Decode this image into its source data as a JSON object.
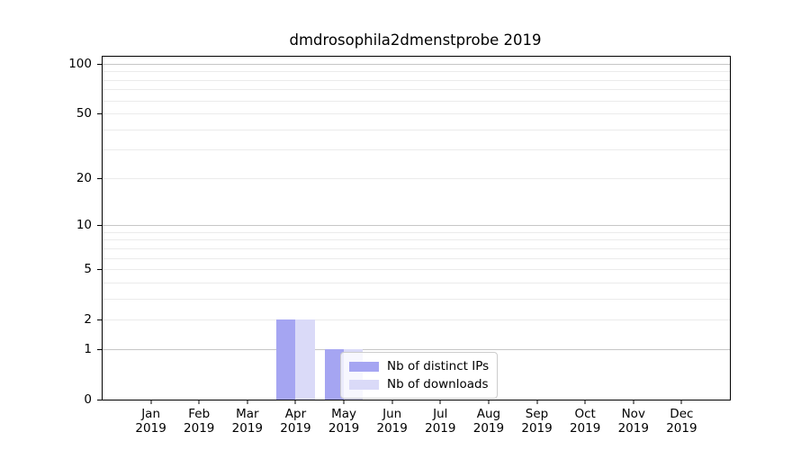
{
  "title": "dmdrosophila2dmenstprobe 2019",
  "chart_data": {
    "type": "bar",
    "title": "dmdrosophila2dmenstprobe 2019",
    "categories": [
      "Jan",
      "Feb",
      "Mar",
      "Apr",
      "May",
      "Jun",
      "Jul",
      "Aug",
      "Sep",
      "Oct",
      "Nov",
      "Dec"
    ],
    "year": "2019",
    "series": [
      {
        "name": "Nb of distinct IPs",
        "color": "#a5a5f2",
        "values": [
          0,
          0,
          0,
          2,
          1,
          0,
          0,
          0,
          0,
          0,
          0,
          0
        ]
      },
      {
        "name": "Nb of downloads",
        "color": "#dadaf8",
        "values": [
          0,
          0,
          0,
          2,
          1,
          0,
          0,
          0,
          0,
          0,
          0,
          0
        ]
      }
    ],
    "yscale": "log1p",
    "ylim": [
      0,
      110.4
    ],
    "yticks": [
      0,
      1,
      2,
      5,
      10,
      20,
      50,
      100
    ],
    "grid_major": [
      1,
      10,
      100
    ],
    "grid_minor": [
      2,
      3,
      4,
      5,
      6,
      7,
      8,
      9,
      20,
      30,
      40,
      50,
      60,
      70,
      80,
      90
    ],
    "grid_major_color": "#c6c6c6",
    "grid_minor_color": "#ebebeb",
    "legend_position": "lower center",
    "grid": "on"
  }
}
